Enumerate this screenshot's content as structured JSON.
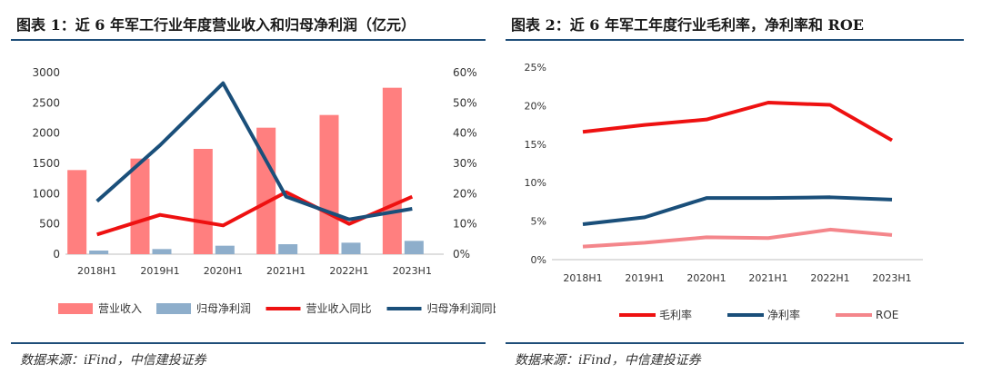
{
  "left": {
    "title": "图表 1：近 6 年军工行业年度营业收入和归母净利润（亿元）",
    "source": "数据来源：iFind，中信建投证券"
  },
  "right": {
    "title": "图表 2：近 6 年军工年度行业毛利率，净利率和 ROE",
    "source": "数据来源：iFind，中信建投证券"
  },
  "colors": {
    "accent": "#1f4e79"
  },
  "chart_data": [
    {
      "type": "bar",
      "categories": [
        "2018H1",
        "2019H1",
        "2020H1",
        "2021H1",
        "2022H1",
        "2023H1"
      ],
      "left_axis": {
        "ylim": [
          0,
          3000
        ],
        "ticks": [
          "0",
          "500",
          "1000",
          "1500",
          "2000",
          "2500",
          "3000"
        ]
      },
      "right_axis": {
        "ylim": [
          0,
          60
        ],
        "ticks": [
          "0%",
          "10%",
          "20%",
          "30%",
          "40%",
          "50%",
          "60%"
        ]
      },
      "series": [
        {
          "name": "营业收入",
          "kind": "bar",
          "axis": "left",
          "color": "#ff7f7f",
          "values": [
            1390,
            1580,
            1740,
            2090,
            2300,
            2750
          ]
        },
        {
          "name": "归母净利润",
          "kind": "bar",
          "axis": "left",
          "color": "#8eaecb",
          "values": [
            60,
            85,
            140,
            165,
            190,
            220
          ]
        },
        {
          "name": "营业收入同比",
          "kind": "line",
          "axis": "right",
          "color": "#ee1111",
          "values": [
            6.5,
            13,
            9.5,
            20.5,
            10,
            19
          ]
        },
        {
          "name": "归母净利润同比",
          "kind": "line",
          "axis": "right",
          "color": "#1a4f7a",
          "values": [
            17.5,
            36,
            56.5,
            19,
            11.5,
            15
          ]
        }
      ],
      "legend": "bottom"
    },
    {
      "type": "line",
      "categories": [
        "2018H1",
        "2019H1",
        "2020H1",
        "2021H1",
        "2022H1",
        "2023H1"
      ],
      "ylim": [
        0,
        25
      ],
      "ticks": [
        "0%",
        "5%",
        "10%",
        "15%",
        "20%",
        "25%"
      ],
      "series": [
        {
          "name": "毛利率",
          "color": "#ee1111",
          "values": [
            16.6,
            17.5,
            18.2,
            20.4,
            20.1,
            15.5
          ]
        },
        {
          "name": "净利率",
          "color": "#1a4f7a",
          "values": [
            4.6,
            5.5,
            8.0,
            8.0,
            8.1,
            7.8
          ]
        },
        {
          "name": "ROE",
          "color": "#f4868b",
          "values": [
            1.7,
            2.2,
            2.9,
            2.8,
            3.9,
            3.2
          ]
        }
      ],
      "legend": "bottom"
    }
  ]
}
